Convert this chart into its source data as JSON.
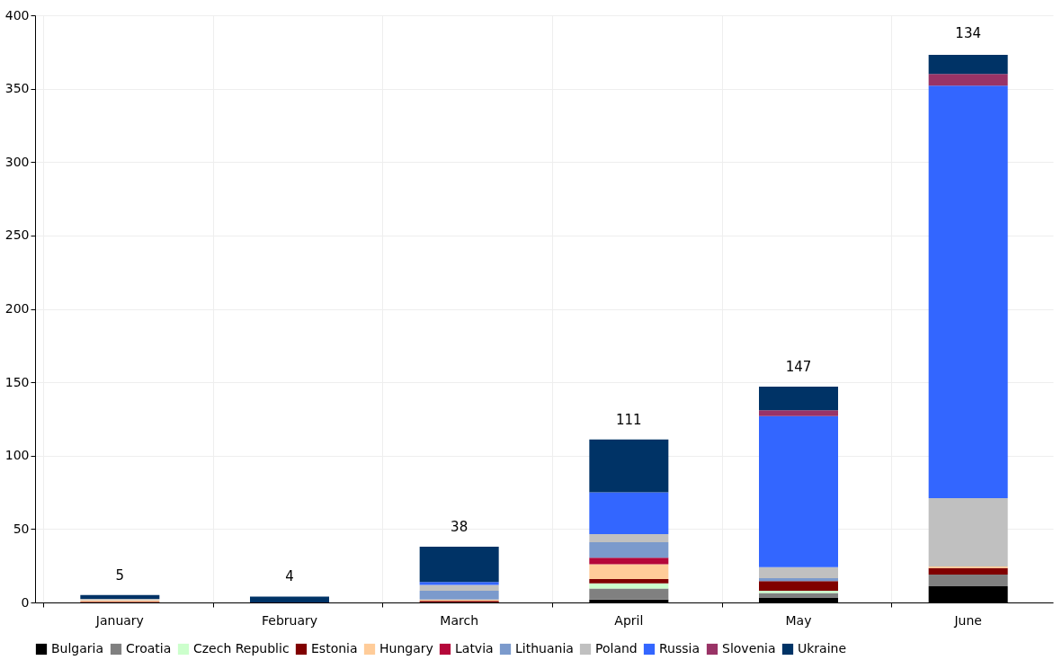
{
  "chart_data": {
    "type": "bar",
    "stacked": true,
    "categories": [
      "January",
      "February",
      "March",
      "April",
      "May",
      "June"
    ],
    "series": [
      {
        "name": "Bulgaria",
        "color": "#000000",
        "values": [
          null,
          null,
          null,
          2,
          3,
          11
        ]
      },
      {
        "name": "Croatia",
        "color": "#808080",
        "values": [
          null,
          null,
          null,
          7.5,
          3.5,
          8
        ]
      },
      {
        "name": "Czech Republic",
        "color": "#ccffcc",
        "values": [
          null,
          null,
          null,
          3.5,
          1.5,
          null
        ]
      },
      {
        "name": "Estonia",
        "color": "#800000",
        "values": [
          0.5,
          null,
          1,
          3,
          6.5,
          4.5
        ]
      },
      {
        "name": "Hungary",
        "color": "#ffcc99",
        "values": [
          1,
          null,
          1,
          10,
          null,
          1
        ]
      },
      {
        "name": "Latvia",
        "color": "#b5073a",
        "values": [
          null,
          null,
          null,
          4.5,
          null,
          null
        ]
      },
      {
        "name": "Lithuania",
        "color": "#7b9acc",
        "values": [
          null,
          null,
          6,
          10.5,
          2,
          null
        ]
      },
      {
        "name": "Poland",
        "color": "#c0c0c0",
        "values": [
          1,
          null,
          4,
          5.5,
          7.5,
          46.5
        ]
      },
      {
        "name": "Russia",
        "color": "#3366ff",
        "values": [
          null,
          null,
          2,
          28.5,
          103,
          281
        ]
      },
      {
        "name": "Slovenia",
        "color": "#993366",
        "values": [
          null,
          null,
          null,
          null,
          4,
          8
        ]
      },
      {
        "name": "Ukraine",
        "color": "#003366",
        "values": [
          2.5,
          4,
          24,
          36,
          16,
          13
        ]
      }
    ],
    "annotations": [
      {
        "text": "5",
        "x": "January",
        "y": 5
      },
      {
        "text": "4",
        "x": "February",
        "y": 4
      },
      {
        "text": "38",
        "x": "March",
        "y": 38
      },
      {
        "text": "111",
        "x": "April",
        "y": 111
      },
      {
        "text": "147",
        "x": "May",
        "y": 147
      },
      {
        "text": "134",
        "x": "June",
        "y": 374
      }
    ],
    "ylim": [
      0,
      400
    ],
    "yticks": [
      0,
      50,
      100,
      150,
      200,
      250,
      300,
      350,
      400
    ],
    "grid": true,
    "legend": "bottom"
  }
}
